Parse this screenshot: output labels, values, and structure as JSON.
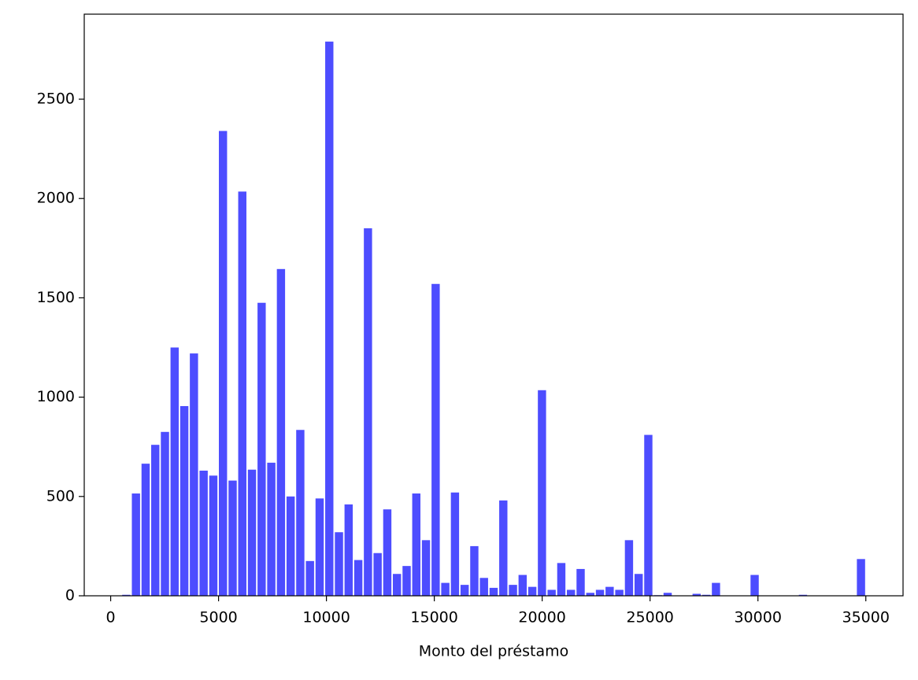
{
  "chart_data": {
    "type": "histogram",
    "x_label": "Monto del préstamo",
    "color": "#4d4dff",
    "bins": [
      500,
      948,
      1396,
      1844,
      2292,
      2740,
      3188,
      3636,
      4084,
      4533,
      4981,
      5429,
      5877,
      6325,
      6773,
      7221,
      7669,
      8117,
      8565,
      9013,
      9461,
      9909,
      10357,
      10805,
      11253,
      11701,
      12149,
      12597,
      13045,
      13493,
      13942,
      14390,
      14838,
      15286,
      15734,
      16182,
      16630,
      17078,
      17526,
      17974,
      18422,
      18870,
      19318,
      19766,
      20214,
      20662,
      21110,
      21558,
      22006,
      22454,
      22902,
      23351,
      23799,
      24247,
      24695,
      25143,
      25591,
      26039,
      26487,
      26935,
      27383,
      27831,
      28279,
      28727,
      29175,
      29623,
      30071,
      30519,
      30967,
      31415,
      31863,
      32311,
      32760,
      33208,
      33656,
      34104,
      34552,
      35000
    ],
    "values": [
      5,
      515,
      665,
      760,
      825,
      1250,
      955,
      1220,
      630,
      605,
      2340,
      580,
      2035,
      635,
      1475,
      670,
      1645,
      500,
      835,
      175,
      490,
      2790,
      320,
      460,
      180,
      1850,
      215,
      435,
      110,
      150,
      515,
      280,
      1570,
      65,
      520,
      55,
      250,
      90,
      40,
      480,
      55,
      105,
      45,
      1035,
      30,
      165,
      30,
      135,
      15,
      30,
      45,
      30,
      280,
      110,
      810,
      3,
      15,
      0,
      0,
      10,
      5,
      65,
      0,
      0,
      0,
      105,
      0,
      0,
      0,
      0,
      5,
      0,
      0,
      0,
      0,
      0,
      185
    ],
    "xlim": [
      -1225,
      36725
    ],
    "ylim": [
      0,
      2928
    ],
    "xticks": [
      0,
      5000,
      10000,
      15000,
      20000,
      25000,
      30000,
      35000
    ],
    "yticks": [
      0,
      500,
      1000,
      1500,
      2000,
      2500
    ]
  }
}
